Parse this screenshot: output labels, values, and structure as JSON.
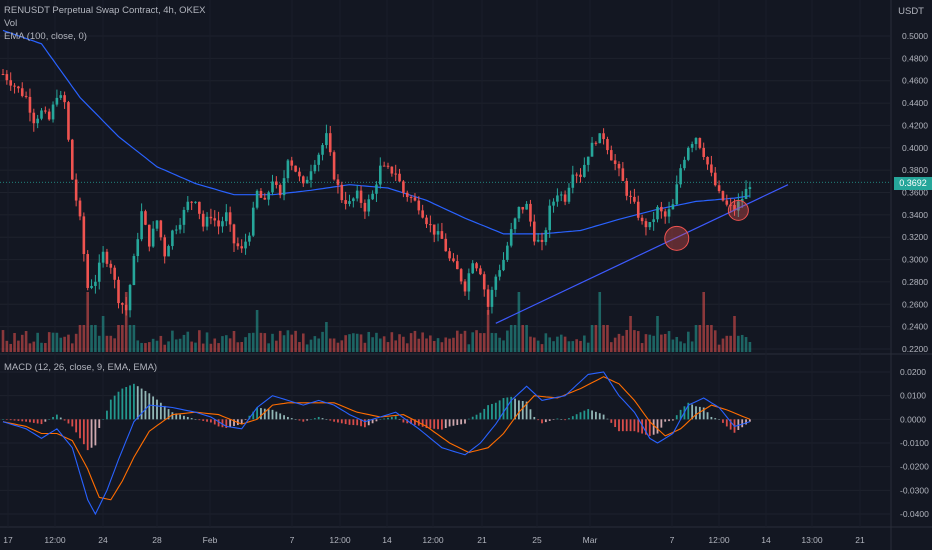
{
  "legend": {
    "symbol": "RENUSDT Perpetual Swap Contract, 4h, OKEX",
    "vol": "Vol",
    "ema": "EMA (100, close, 0)",
    "macd": "MACD (12, 26, close, 9, EMA, EMA)"
  },
  "currency": "USDT",
  "last_price": "0.3692",
  "colors": {
    "background": "#131722",
    "up": "#26a69a",
    "down": "#ef5350",
    "ema": "#2962ff",
    "macd": "#2962ff",
    "signal": "#ff6d00",
    "trendline": "#3d5afe",
    "circle": "#ef5350"
  },
  "chart_data": [
    {
      "type": "candlestick",
      "series_name": "RENUSDT",
      "ylim": [
        0.218,
        0.52
      ],
      "y_ticks": [
        "0.5000",
        "0.4800",
        "0.4600",
        "0.4400",
        "0.4200",
        "0.4000",
        "0.3800",
        "0.3600",
        "0.3400",
        "0.3200",
        "0.3000",
        "0.2800",
        "0.2600",
        "0.2400",
        "0.2200"
      ],
      "x_ticks": [
        "17",
        "12:00",
        "24",
        "28",
        "Feb",
        "7",
        "12:00",
        "14",
        "12:00",
        "21",
        "25",
        "Mar",
        "7",
        "12:00",
        "14",
        "13:00",
        "21"
      ],
      "keypoints": [
        [
          0,
          0.466
        ],
        [
          6,
          0.445
        ],
        [
          8,
          0.425
        ],
        [
          10,
          0.432
        ],
        [
          12,
          0.425
        ],
        [
          14,
          0.448
        ],
        [
          16,
          0.44
        ],
        [
          18,
          0.372
        ],
        [
          20,
          0.335
        ],
        [
          22,
          0.275
        ],
        [
          24,
          0.282
        ],
        [
          26,
          0.305
        ],
        [
          28,
          0.295
        ],
        [
          30,
          0.265
        ],
        [
          32,
          0.255
        ],
        [
          34,
          0.3
        ],
        [
          36,
          0.342
        ],
        [
          38,
          0.315
        ],
        [
          40,
          0.335
        ],
        [
          42,
          0.305
        ],
        [
          44,
          0.325
        ],
        [
          46,
          0.335
        ],
        [
          48,
          0.35
        ],
        [
          50,
          0.355
        ],
        [
          52,
          0.33
        ],
        [
          54,
          0.34
        ],
        [
          56,
          0.33
        ],
        [
          58,
          0.34
        ],
        [
          60,
          0.315
        ],
        [
          62,
          0.308
        ],
        [
          64,
          0.325
        ],
        [
          66,
          0.36
        ],
        [
          68,
          0.35
        ],
        [
          70,
          0.372
        ],
        [
          72,
          0.355
        ],
        [
          74,
          0.392
        ],
        [
          76,
          0.38
        ],
        [
          78,
          0.365
        ],
        [
          80,
          0.382
        ],
        [
          82,
          0.395
        ],
        [
          84,
          0.41
        ],
        [
          86,
          0.375
        ],
        [
          88,
          0.355
        ],
        [
          90,
          0.35
        ],
        [
          92,
          0.358
        ],
        [
          94,
          0.346
        ],
        [
          96,
          0.358
        ],
        [
          98,
          0.382
        ],
        [
          100,
          0.38
        ],
        [
          102,
          0.378
        ],
        [
          104,
          0.36
        ],
        [
          106,
          0.355
        ],
        [
          108,
          0.348
        ],
        [
          110,
          0.335
        ],
        [
          112,
          0.325
        ],
        [
          114,
          0.318
        ],
        [
          116,
          0.3
        ],
        [
          118,
          0.29
        ],
        [
          120,
          0.275
        ],
        [
          122,
          0.3
        ],
        [
          124,
          0.29
        ],
        [
          126,
          0.258
        ],
        [
          128,
          0.285
        ],
        [
          130,
          0.3
        ],
        [
          132,
          0.325
        ],
        [
          134,
          0.345
        ],
        [
          136,
          0.348
        ],
        [
          138,
          0.32
        ],
        [
          140,
          0.312
        ],
        [
          142,
          0.345
        ],
        [
          144,
          0.36
        ],
        [
          146,
          0.355
        ],
        [
          148,
          0.38
        ],
        [
          150,
          0.376
        ],
        [
          152,
          0.395
        ],
        [
          154,
          0.408
        ],
        [
          156,
          0.41
        ],
        [
          158,
          0.392
        ],
        [
          160,
          0.378
        ],
        [
          162,
          0.36
        ],
        [
          164,
          0.348
        ],
        [
          166,
          0.332
        ],
        [
          168,
          0.33
        ],
        [
          170,
          0.345
        ],
        [
          172,
          0.338
        ],
        [
          174,
          0.348
        ],
        [
          176,
          0.382
        ],
        [
          178,
          0.402
        ],
        [
          180,
          0.41
        ],
        [
          182,
          0.395
        ],
        [
          184,
          0.375
        ],
        [
          186,
          0.358
        ],
        [
          188,
          0.348
        ],
        [
          190,
          0.345
        ],
        [
          192,
          0.355
        ],
        [
          194,
          0.368
        ]
      ],
      "ema_keypoints": [
        [
          0,
          0.505
        ],
        [
          10,
          0.493
        ],
        [
          20,
          0.445
        ],
        [
          30,
          0.41
        ],
        [
          40,
          0.383
        ],
        [
          50,
          0.368
        ],
        [
          60,
          0.358
        ],
        [
          70,
          0.358
        ],
        [
          80,
          0.362
        ],
        [
          90,
          0.367
        ],
        [
          100,
          0.364
        ],
        [
          110,
          0.353
        ],
        [
          120,
          0.337
        ],
        [
          130,
          0.323
        ],
        [
          140,
          0.323
        ],
        [
          150,
          0.326
        ],
        [
          160,
          0.336
        ],
        [
          170,
          0.345
        ],
        [
          180,
          0.352
        ],
        [
          190,
          0.355
        ],
        [
          194,
          0.357
        ]
      ]
    },
    {
      "type": "bar",
      "series_name": "Vol",
      "peaks": [
        [
          22,
          1.0
        ],
        [
          26,
          0.6
        ],
        [
          32,
          1.0
        ],
        [
          66,
          0.7
        ],
        [
          84,
          0.5
        ],
        [
          126,
          0.7
        ],
        [
          134,
          1.0
        ],
        [
          155,
          1.0
        ],
        [
          163,
          0.6
        ],
        [
          170,
          0.6
        ],
        [
          182,
          1.0
        ],
        [
          190,
          0.6
        ]
      ]
    },
    {
      "type": "line",
      "series_name": "MACD",
      "ylim": [
        -0.044,
        0.024
      ],
      "y_ticks": [
        "0.0200",
        "0.0100",
        "0.0000",
        "-0.0100",
        "-0.0200",
        "-0.0300",
        "-0.0400"
      ],
      "macd_keypoints": [
        [
          0,
          -0.001
        ],
        [
          6,
          -0.004
        ],
        [
          10,
          -0.008
        ],
        [
          14,
          -0.004
        ],
        [
          18,
          -0.012
        ],
        [
          22,
          -0.034
        ],
        [
          24,
          -0.04
        ],
        [
          27,
          -0.03
        ],
        [
          30,
          -0.017
        ],
        [
          34,
          -0.001
        ],
        [
          38,
          0.006
        ],
        [
          44,
          0.005
        ],
        [
          50,
          0.003
        ],
        [
          54,
          0.001
        ],
        [
          58,
          -0.003
        ],
        [
          62,
          -0.004
        ],
        [
          66,
          0.005
        ],
        [
          70,
          0.01
        ],
        [
          74,
          0.008
        ],
        [
          78,
          0.006
        ],
        [
          82,
          0.008
        ],
        [
          86,
          0.006
        ],
        [
          90,
          0.002
        ],
        [
          94,
          -0.001
        ],
        [
          98,
          0.001
        ],
        [
          102,
          0.003
        ],
        [
          108,
          -0.004
        ],
        [
          114,
          -0.012
        ],
        [
          120,
          -0.015
        ],
        [
          124,
          -0.01
        ],
        [
          128,
          -0.002
        ],
        [
          132,
          0.008
        ],
        [
          136,
          0.014
        ],
        [
          140,
          0.008
        ],
        [
          146,
          0.01
        ],
        [
          152,
          0.019
        ],
        [
          156,
          0.02
        ],
        [
          160,
          0.01
        ],
        [
          164,
          0.003
        ],
        [
          168,
          -0.008
        ],
        [
          170,
          -0.01
        ],
        [
          174,
          -0.006
        ],
        [
          178,
          0.006
        ],
        [
          182,
          0.009
        ],
        [
          186,
          0.005
        ],
        [
          190,
          -0.003
        ],
        [
          194,
          -0.001
        ]
      ],
      "signal_keypoints": [
        [
          0,
          -0.001
        ],
        [
          6,
          -0.003
        ],
        [
          10,
          -0.006
        ],
        [
          14,
          -0.006
        ],
        [
          18,
          -0.009
        ],
        [
          22,
          -0.021
        ],
        [
          25,
          -0.033
        ],
        [
          28,
          -0.034
        ],
        [
          31,
          -0.026
        ],
        [
          34,
          -0.016
        ],
        [
          38,
          -0.005
        ],
        [
          44,
          0.002
        ],
        [
          50,
          0.003
        ],
        [
          56,
          0.002
        ],
        [
          62,
          -0.002
        ],
        [
          66,
          0.0
        ],
        [
          70,
          0.006
        ],
        [
          74,
          0.007
        ],
        [
          80,
          0.007
        ],
        [
          86,
          0.007
        ],
        [
          92,
          0.003
        ],
        [
          98,
          0.001
        ],
        [
          104,
          0.002
        ],
        [
          110,
          -0.003
        ],
        [
          116,
          -0.01
        ],
        [
          121,
          -0.014
        ],
        [
          126,
          -0.012
        ],
        [
          130,
          -0.006
        ],
        [
          134,
          0.003
        ],
        [
          138,
          0.01
        ],
        [
          144,
          0.009
        ],
        [
          150,
          0.013
        ],
        [
          156,
          0.018
        ],
        [
          160,
          0.015
        ],
        [
          164,
          0.008
        ],
        [
          168,
          -0.001
        ],
        [
          172,
          -0.007
        ],
        [
          176,
          -0.004
        ],
        [
          180,
          0.002
        ],
        [
          184,
          0.006
        ],
        [
          188,
          0.004
        ],
        [
          194,
          0.0
        ]
      ]
    }
  ]
}
